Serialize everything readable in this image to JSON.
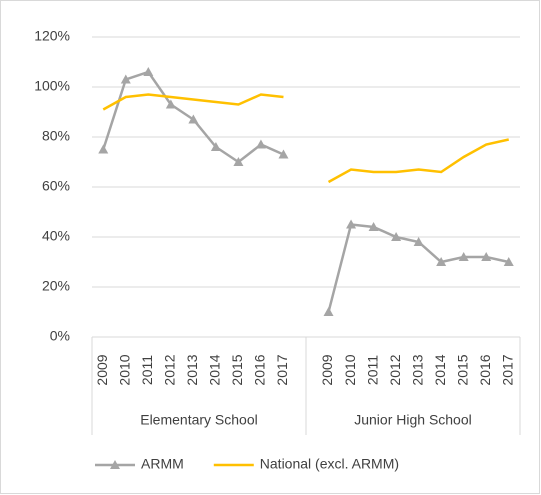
{
  "chart_data": {
    "type": "line",
    "groups": [
      {
        "label": "Elementary School",
        "categories": [
          "2009",
          "2010",
          "2011",
          "2012",
          "2013",
          "2014",
          "2015",
          "2016",
          "2017"
        ]
      },
      {
        "label": "Junior High School",
        "categories": [
          "2009",
          "2010",
          "2011",
          "2012",
          "2013",
          "2014",
          "2015",
          "2016",
          "2017"
        ]
      }
    ],
    "series": [
      {
        "name": "ARMM",
        "color": "#a5a5a5",
        "marker": "triangle",
        "values": [
          [
            75,
            103,
            106,
            93,
            87,
            76,
            70,
            77,
            73
          ],
          [
            10,
            45,
            44,
            40,
            38,
            30,
            32,
            32,
            30
          ]
        ]
      },
      {
        "name": "National (excl. ARMM)",
        "color": "#ffc000",
        "values": [
          [
            91,
            96,
            97,
            96,
            95,
            94,
            93,
            97,
            96
          ],
          [
            62,
            67,
            66,
            66,
            67,
            66,
            72,
            77,
            79
          ]
        ]
      }
    ],
    "ylim": [
      0,
      120
    ],
    "yticks": [
      {
        "value": 0,
        "label": "0%"
      },
      {
        "value": 20,
        "label": "20%"
      },
      {
        "value": 40,
        "label": "40%"
      },
      {
        "value": 60,
        "label": "60%"
      },
      {
        "value": 80,
        "label": "80%"
      },
      {
        "value": 100,
        "label": "100%"
      },
      {
        "value": 120,
        "label": "120%"
      }
    ],
    "grid": true,
    "legend": "bottom"
  }
}
